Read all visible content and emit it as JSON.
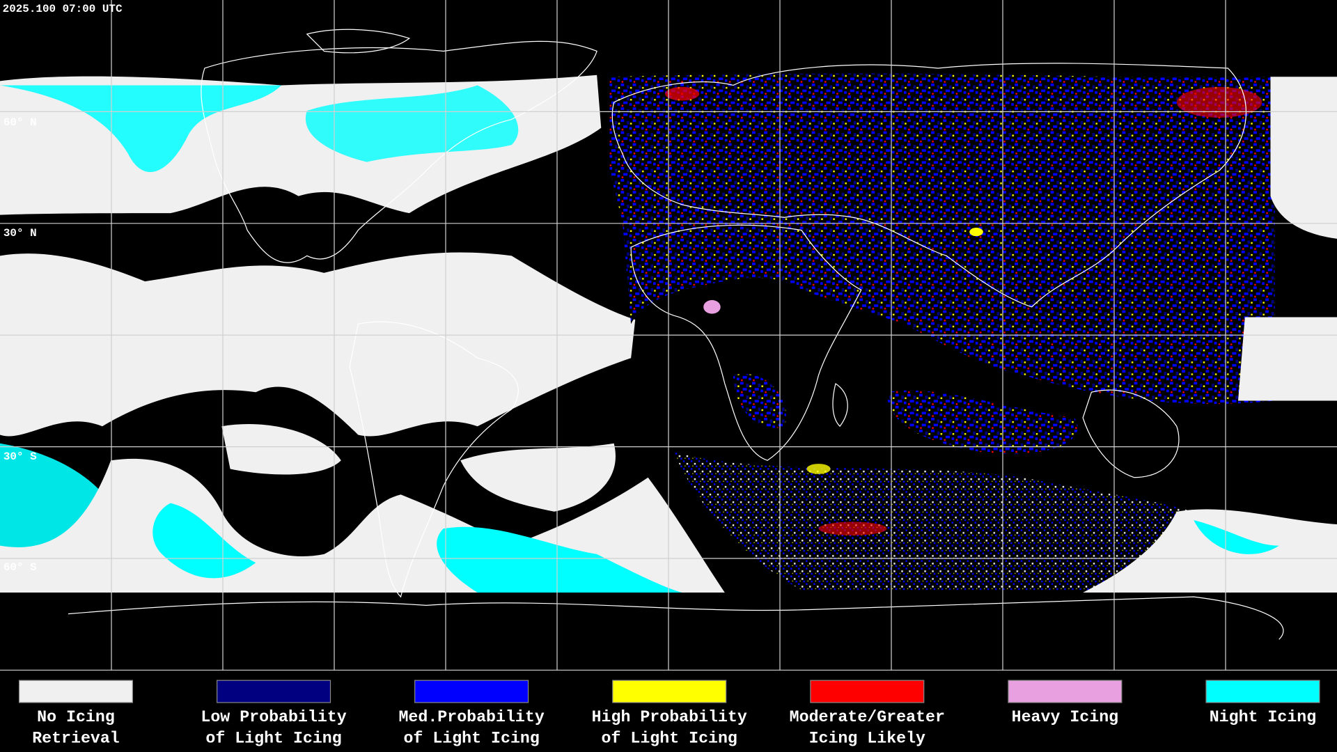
{
  "header": {
    "timestamp": "2025.100 07:00 UTC"
  },
  "map": {
    "latitude_labels": [
      "60° N",
      "30° N",
      "30° S",
      "60° S"
    ]
  },
  "legend": {
    "items": [
      {
        "lines": [
          "No Icing",
          "Retrieval"
        ],
        "color": "#f0f0f0"
      },
      {
        "lines": [
          "Low Probability",
          "of Light Icing"
        ],
        "color": "#000080"
      },
      {
        "lines": [
          "Med.Probability",
          "of Light Icing"
        ],
        "color": "#0000ff"
      },
      {
        "lines": [
          "High Probability",
          "of Light Icing"
        ],
        "color": "#ffff00"
      },
      {
        "lines": [
          "Moderate/Greater",
          "Icing Likely"
        ],
        "color": "#ff0000"
      },
      {
        "lines": [
          "Heavy Icing"
        ],
        "color": "#e8a0e0"
      },
      {
        "lines": [
          "Night Icing"
        ],
        "color": "#00ffff"
      }
    ]
  }
}
